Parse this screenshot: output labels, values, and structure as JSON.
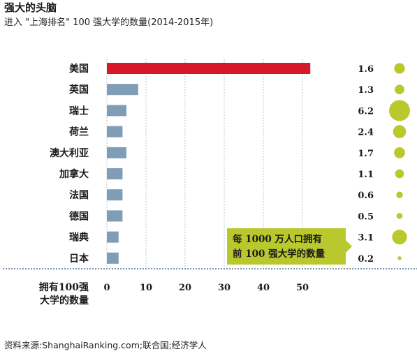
{
  "header": {
    "title": "强大的头脑",
    "subtitle": "进入 \"上海排名\" 100 强大学的数量(2014-2015年)"
  },
  "source": "资料来源:ShanghaiRanking.com;联合国;经济学人",
  "colors": {
    "highlight_bar": "#d7182a",
    "bar": "#7f9db6",
    "bubble": "#b9c82c",
    "grid": "#b8c4ce",
    "axis": "#2f5577",
    "callout": "#b9c82c"
  },
  "chart_data": {
    "type": "bar",
    "orientation": "horizontal",
    "categories": [
      "美国",
      "英国",
      "瑞士",
      "荷兰",
      "澳大利亚",
      "加拿大",
      "法国",
      "德国",
      "瑞典",
      "日本"
    ],
    "series": [
      {
        "values": [
          52,
          8,
          5,
          4,
          5,
          4,
          4,
          4,
          3,
          3
        ]
      }
    ],
    "per_10m_pop": [
      1.6,
      1.3,
      6.2,
      2.4,
      1.7,
      1.1,
      0.6,
      0.5,
      3.1,
      0.2
    ],
    "per_10m_labels": [
      "1.6",
      "1.3",
      "6.2",
      "2.4",
      "1.7",
      "1.1",
      "0.6",
      "0.5",
      "3.1",
      "0.2"
    ],
    "xlim": [
      0,
      60
    ],
    "xticks": [
      0,
      10,
      20,
      30,
      40,
      50
    ],
    "xlabel_lines": [
      "拥有100强",
      "大学的数量"
    ],
    "callout_lines": [
      "每 1000 万人口拥有",
      "前 100 强大学的数量"
    ],
    "grid": true,
    "highlight_category": "美国"
  }
}
